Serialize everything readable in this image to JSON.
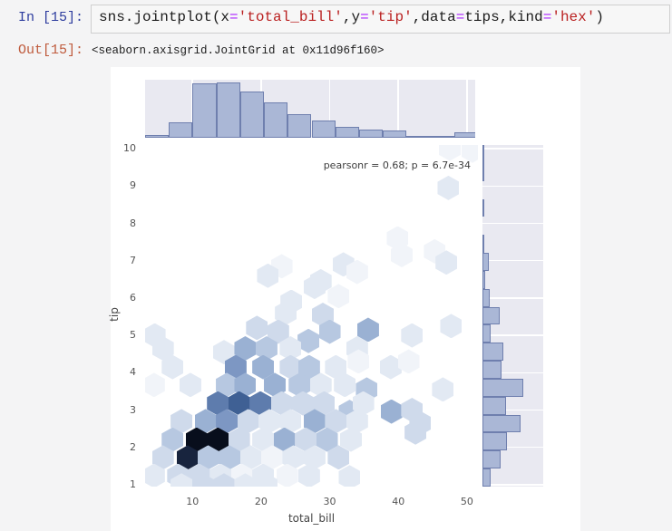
{
  "notebook": {
    "input_prompt": "In [15]:",
    "output_prompt": "Out[15]:",
    "code_tokens": [
      {
        "text": "sns.jointplot(x",
        "type": "plain"
      },
      {
        "text": "=",
        "type": "operator"
      },
      {
        "text": "'total_bill'",
        "type": "string"
      },
      {
        "text": ",y",
        "type": "plain"
      },
      {
        "text": "=",
        "type": "operator"
      },
      {
        "text": "'tip'",
        "type": "string"
      },
      {
        "text": ",data",
        "type": "plain"
      },
      {
        "text": "=",
        "type": "operator"
      },
      {
        "text": "tips,kind",
        "type": "plain"
      },
      {
        "text": "=",
        "type": "operator"
      },
      {
        "text": "'hex'",
        "type": "string"
      },
      {
        "text": ")",
        "type": "plain"
      }
    ],
    "output_text": "<seaborn.axisgrid.JointGrid at 0x11d96f160>"
  },
  "colors": {
    "in_prompt": "#2e3d9e",
    "out_prompt": "#bf5b3d",
    "code_string": "#ba2121",
    "code_operator": "#aa22ff",
    "panel_background": "#e9e9f1",
    "bar_fill": "#aab7d6",
    "bar_edge": "#6f7fae"
  },
  "chart_data": {
    "type": "hexbin-joint",
    "xlabel": "total_bill",
    "ylabel": "tip",
    "annotation": "pearsonr = 0.68; p = 6.7e-34",
    "x_ticks": [
      10,
      20,
      30,
      40,
      50
    ],
    "y_ticks": [
      10,
      9,
      8,
      7,
      6,
      5,
      4,
      3,
      2,
      1
    ],
    "xlim": [
      3.1,
      51.6
    ],
    "ylim": [
      0.95,
      10.1
    ],
    "grid": "marginals-only",
    "palette": [
      "#f1f4f9",
      "#e2e9f3",
      "#cfdaeb",
      "#b7c8e1",
      "#9ab1d3",
      "#7d97c3",
      "#5e7cad",
      "#3f6094",
      "#18243e",
      "#080e1c"
    ],
    "hexes": [
      [
        47.5,
        10.0,
        0
      ],
      [
        50.8,
        9.95,
        0
      ],
      [
        47.3,
        8.95,
        1
      ],
      [
        39.9,
        7.6,
        0
      ],
      [
        45.3,
        7.25,
        0
      ],
      [
        40.5,
        7.15,
        0
      ],
      [
        47.0,
        6.95,
        1
      ],
      [
        23.0,
        6.85,
        0
      ],
      [
        32.0,
        6.9,
        1
      ],
      [
        21.0,
        6.6,
        1
      ],
      [
        27.8,
        6.3,
        1
      ],
      [
        28.7,
        6.45,
        1
      ],
      [
        34.0,
        6.7,
        0
      ],
      [
        31.3,
        6.05,
        0
      ],
      [
        24.4,
        5.9,
        1
      ],
      [
        23.6,
        5.6,
        1
      ],
      [
        29.0,
        5.55,
        2
      ],
      [
        4.5,
        5.0,
        1
      ],
      [
        19.4,
        5.2,
        2
      ],
      [
        22.5,
        5.1,
        2
      ],
      [
        26.9,
        4.85,
        3
      ],
      [
        30.0,
        5.1,
        3
      ],
      [
        35.6,
        5.15,
        4
      ],
      [
        42.0,
        5.0,
        1
      ],
      [
        47.7,
        5.25,
        1
      ],
      [
        5.7,
        4.65,
        1
      ],
      [
        14.6,
        4.55,
        1
      ],
      [
        17.7,
        4.65,
        4
      ],
      [
        20.8,
        4.65,
        3
      ],
      [
        24.3,
        4.65,
        1
      ],
      [
        34.0,
        4.65,
        1
      ],
      [
        7.1,
        4.15,
        1
      ],
      [
        16.3,
        4.15,
        5
      ],
      [
        20.3,
        4.15,
        4
      ],
      [
        24.3,
        4.15,
        2
      ],
      [
        27.0,
        4.15,
        3
      ],
      [
        30.9,
        4.15,
        1
      ],
      [
        34.2,
        4.3,
        0
      ],
      [
        38.9,
        4.15,
        1
      ],
      [
        41.5,
        4.3,
        0
      ],
      [
        4.4,
        3.67,
        0
      ],
      [
        9.7,
        3.67,
        1
      ],
      [
        15.0,
        3.67,
        3
      ],
      [
        17.7,
        3.67,
        4
      ],
      [
        22.0,
        3.67,
        4
      ],
      [
        25.6,
        3.67,
        3
      ],
      [
        28.7,
        3.67,
        1
      ],
      [
        32.2,
        3.67,
        1
      ],
      [
        35.4,
        3.55,
        3
      ],
      [
        46.5,
        3.55,
        1
      ],
      [
        13.7,
        3.18,
        6
      ],
      [
        16.8,
        3.18,
        7
      ],
      [
        19.9,
        3.18,
        6
      ],
      [
        23.0,
        3.18,
        2
      ],
      [
        26.1,
        3.18,
        2
      ],
      [
        29.2,
        3.18,
        2
      ],
      [
        32.9,
        2.95,
        3
      ],
      [
        34.9,
        3.18,
        1
      ],
      [
        39.0,
        2.96,
        4
      ],
      [
        42.0,
        3.0,
        2
      ],
      [
        8.4,
        2.7,
        2
      ],
      [
        11.9,
        2.7,
        4
      ],
      [
        15.0,
        2.7,
        5
      ],
      [
        18.1,
        2.7,
        2
      ],
      [
        21.2,
        2.7,
        1
      ],
      [
        24.3,
        2.7,
        1
      ],
      [
        27.8,
        2.7,
        4
      ],
      [
        30.9,
        2.7,
        2
      ],
      [
        34.0,
        2.7,
        1
      ],
      [
        43.2,
        2.65,
        2
      ],
      [
        7.1,
        2.21,
        3
      ],
      [
        10.6,
        2.21,
        9
      ],
      [
        13.7,
        2.21,
        9
      ],
      [
        16.8,
        2.21,
        2
      ],
      [
        20.3,
        2.21,
        1
      ],
      [
        23.4,
        2.21,
        4
      ],
      [
        26.5,
        2.21,
        2
      ],
      [
        29.6,
        2.21,
        3
      ],
      [
        33.1,
        2.21,
        1
      ],
      [
        42.5,
        2.4,
        2
      ],
      [
        5.7,
        1.73,
        2
      ],
      [
        9.3,
        1.73,
        8
      ],
      [
        12.3,
        1.73,
        3
      ],
      [
        15.4,
        1.73,
        3
      ],
      [
        18.5,
        1.73,
        1
      ],
      [
        21.6,
        1.73,
        0
      ],
      [
        24.7,
        1.73,
        1
      ],
      [
        27.8,
        1.73,
        1
      ],
      [
        31.3,
        1.73,
        2
      ],
      [
        4.4,
        1.24,
        1
      ],
      [
        7.9,
        1.24,
        2
      ],
      [
        11.0,
        1.24,
        2
      ],
      [
        14.1,
        1.24,
        1
      ],
      [
        17.2,
        1.24,
        0
      ],
      [
        20.3,
        1.24,
        1
      ],
      [
        23.8,
        1.24,
        0
      ],
      [
        27.0,
        1.24,
        1
      ],
      [
        32.9,
        1.2,
        1
      ],
      [
        8.4,
        0.98,
        1
      ],
      [
        11.5,
        0.98,
        2
      ],
      [
        14.6,
        0.98,
        2
      ],
      [
        17.7,
        0.98,
        1
      ],
      [
        20.8,
        0.98,
        1
      ]
    ],
    "top_marginal": {
      "type": "bar",
      "orientation": "vertical",
      "values_pct": [
        5,
        26,
        93,
        96,
        79,
        61,
        41,
        30,
        18,
        14,
        12,
        3,
        2,
        9
      ]
    },
    "right_marginal": {
      "type": "bar",
      "orientation": "horizontal",
      "values_pct_top_to_bottom": [
        2,
        2,
        0,
        2,
        0,
        3,
        10,
        5,
        12,
        28,
        13,
        35,
        32,
        67,
        39,
        63,
        41,
        30,
        13
      ]
    }
  }
}
